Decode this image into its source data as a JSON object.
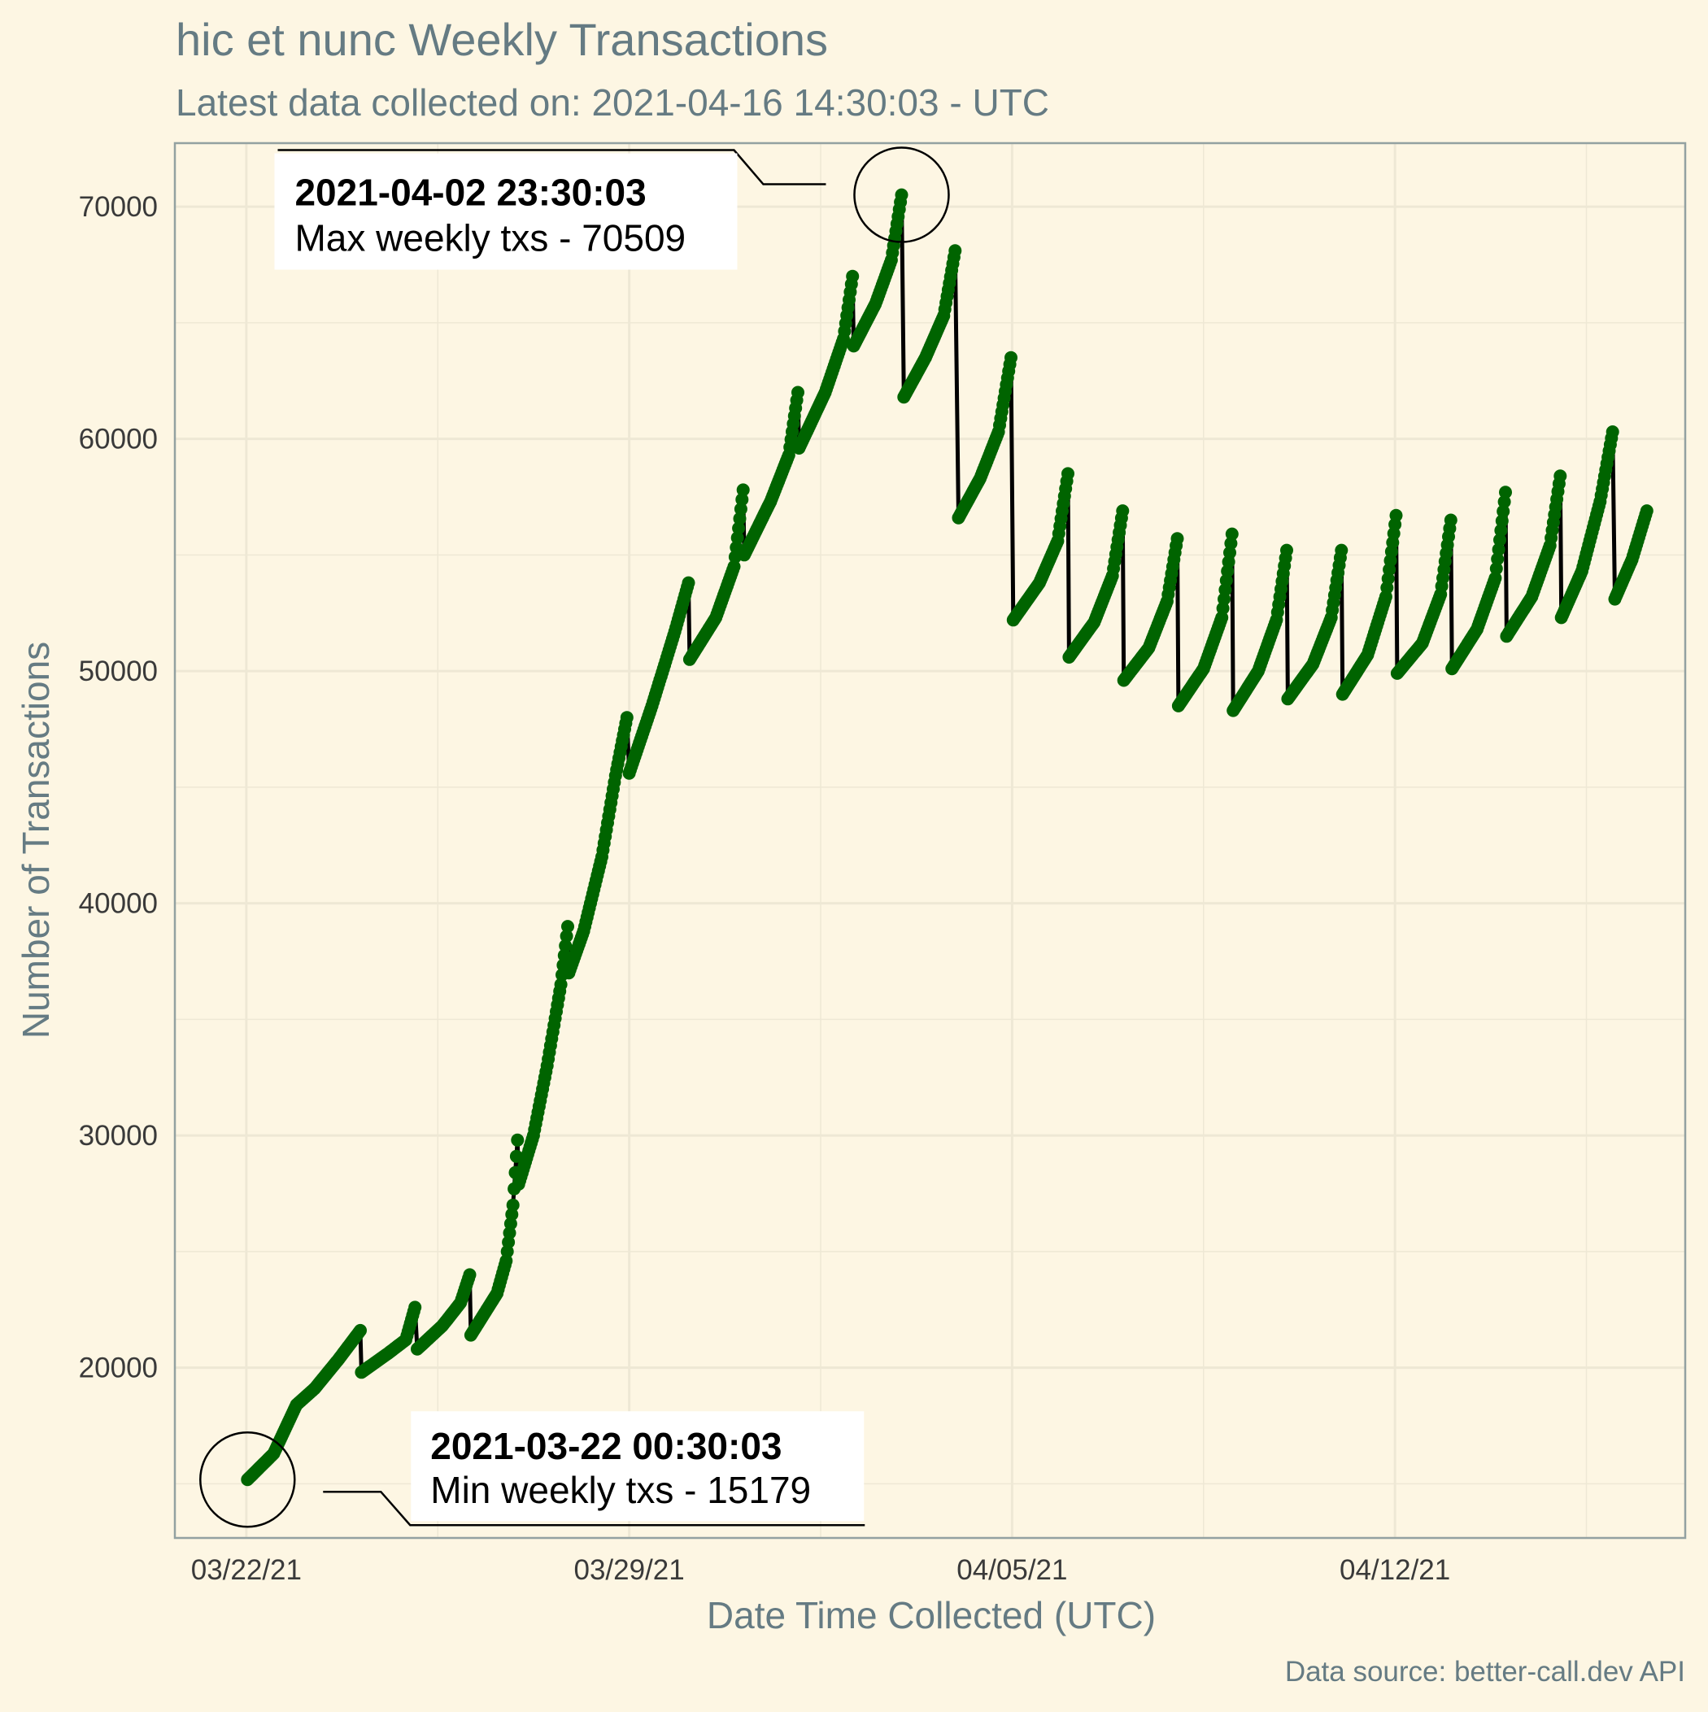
{
  "colors": {
    "background": "#fdf6e3",
    "panel_border": "#93a1a1",
    "grid": "#eee8d5",
    "line": "#000000",
    "points": "#006400",
    "text_muted": "#657b83",
    "annotation_box": "#ffffff"
  },
  "chart_data": {
    "type": "line",
    "title": "hic et nunc Weekly Transactions",
    "subtitle": "Latest data collected on: 2021-04-16 14:30:03  - UTC",
    "xlabel": "Date Time Collected (UTC)",
    "ylabel": "Number of Transactions",
    "caption": "Data source: better-call.dev API",
    "x_type": "datetime",
    "xlim": [
      "2021-03-20 17:00",
      "2021-04-17 07:00"
    ],
    "ylim": [
      12700,
      72700
    ],
    "x_ticks": [
      {
        "value": "2021-03-22 00:00",
        "label": "03/22/21"
      },
      {
        "value": "2021-03-29 00:00",
        "label": "03/29/21"
      },
      {
        "value": "2021-04-05 00:00",
        "label": "04/05/21"
      },
      {
        "value": "2021-04-12 00:00",
        "label": "04/12/21"
      }
    ],
    "y_ticks": [
      20000,
      30000,
      40000,
      50000,
      60000,
      70000
    ],
    "grid": true,
    "legend": "none",
    "series": [
      {
        "segments": [
          [
            [
              "2021-03-22 00:30",
              15179
            ],
            [
              "2021-03-22 12:00",
              16300
            ],
            [
              "2021-03-22 22:00",
              18400
            ],
            [
              "2021-03-23 06:00",
              19100
            ],
            [
              "2021-03-23 16:00",
              20300
            ],
            [
              "2021-03-24 02:00",
              21600
            ]
          ],
          [
            [
              "2021-03-24 02:30",
              19800
            ],
            [
              "2021-03-24 14:00",
              20600
            ],
            [
              "2021-03-24 22:00",
              21200
            ],
            [
              "2021-03-25 02:00",
              22600
            ]
          ],
          [
            [
              "2021-03-25 03:00",
              20800
            ],
            [
              "2021-03-25 14:00",
              21800
            ],
            [
              "2021-03-25 22:00",
              22800
            ],
            [
              "2021-03-26 02:00",
              24000
            ]
          ],
          [
            [
              "2021-03-26 02:30",
              21400
            ],
            [
              "2021-03-26 14:00",
              23200
            ],
            [
              "2021-03-26 18:00",
              24600
            ],
            [
              "2021-03-26 21:00",
              27000
            ],
            [
              "2021-03-26 23:00",
              29800
            ]
          ],
          [
            [
              "2021-03-26 23:30",
              27900
            ],
            [
              "2021-03-27 06:00",
              30000
            ],
            [
              "2021-03-27 12:00",
              33000
            ],
            [
              "2021-03-27 18:00",
              36500
            ],
            [
              "2021-03-27 21:00",
              39000
            ]
          ],
          [
            [
              "2021-03-27 21:30",
              37000
            ],
            [
              "2021-03-28 04:00",
              38800
            ],
            [
              "2021-03-28 12:00",
              42000
            ],
            [
              "2021-03-28 18:00",
              45500
            ],
            [
              "2021-03-28 23:00",
              48000
            ]
          ],
          [
            [
              "2021-03-29 00:00",
              45600
            ],
            [
              "2021-03-29 10:00",
              48500
            ],
            [
              "2021-03-29 20:00",
              51700
            ],
            [
              "2021-03-30 02:00",
              53800
            ]
          ],
          [
            [
              "2021-03-30 02:30",
              50500
            ],
            [
              "2021-03-30 14:00",
              52300
            ],
            [
              "2021-03-30 22:00",
              54500
            ],
            [
              "2021-03-31 02:00",
              57800
            ]
          ],
          [
            [
              "2021-03-31 02:30",
              55000
            ],
            [
              "2021-03-31 14:00",
              57300
            ],
            [
              "2021-03-31 22:00",
              59300
            ],
            [
              "2021-04-01 02:00",
              62000
            ]
          ],
          [
            [
              "2021-04-01 02:30",
              59600
            ],
            [
              "2021-04-01 14:00",
              62000
            ],
            [
              "2021-04-01 22:00",
              64300
            ],
            [
              "2021-04-02 02:00",
              67000
            ]
          ],
          [
            [
              "2021-04-02 02:30",
              64000
            ],
            [
              "2021-04-02 12:00",
              65800
            ],
            [
              "2021-04-02 19:00",
              67700
            ],
            [
              "2021-04-02 23:30",
              70509
            ]
          ],
          [
            [
              "2021-04-03 00:30",
              61800
            ],
            [
              "2021-04-03 10:00",
              63500
            ],
            [
              "2021-04-03 18:00",
              65300
            ],
            [
              "2021-04-03 23:00",
              68100
            ]
          ],
          [
            [
              "2021-04-04 00:30",
              56600
            ],
            [
              "2021-04-04 10:00",
              58300
            ],
            [
              "2021-04-04 18:00",
              60300
            ],
            [
              "2021-04-04 23:30",
              63500
            ]
          ],
          [
            [
              "2021-04-05 00:30",
              52200
            ],
            [
              "2021-04-05 12:00",
              53800
            ],
            [
              "2021-04-05 20:00",
              55600
            ],
            [
              "2021-04-06 00:30",
              58500
            ]
          ],
          [
            [
              "2021-04-06 01:00",
              50600
            ],
            [
              "2021-04-06 12:00",
              52100
            ],
            [
              "2021-04-06 20:00",
              54100
            ],
            [
              "2021-04-07 00:30",
              56900
            ]
          ],
          [
            [
              "2021-04-07 01:00",
              49600
            ],
            [
              "2021-04-07 12:00",
              51000
            ],
            [
              "2021-04-07 20:00",
              53000
            ],
            [
              "2021-04-08 00:30",
              55700
            ]
          ],
          [
            [
              "2021-04-08 01:00",
              48500
            ],
            [
              "2021-04-08 12:00",
              50100
            ],
            [
              "2021-04-08 20:00",
              52300
            ],
            [
              "2021-04-09 00:30",
              55900
            ]
          ],
          [
            [
              "2021-04-09 01:00",
              48300
            ],
            [
              "2021-04-09 12:00",
              50000
            ],
            [
              "2021-04-09 20:00",
              52200
            ],
            [
              "2021-04-10 00:30",
              55200
            ]
          ],
          [
            [
              "2021-04-10 01:00",
              48800
            ],
            [
              "2021-04-10 12:00",
              50300
            ],
            [
              "2021-04-10 20:00",
              52300
            ],
            [
              "2021-04-11 00:30",
              55200
            ]
          ],
          [
            [
              "2021-04-11 01:00",
              49000
            ],
            [
              "2021-04-11 12:00",
              50700
            ],
            [
              "2021-04-11 20:00",
              53200
            ],
            [
              "2021-04-12 00:30",
              56700
            ]
          ],
          [
            [
              "2021-04-12 01:00",
              49900
            ],
            [
              "2021-04-12 12:00",
              51200
            ],
            [
              "2021-04-12 20:00",
              53300
            ],
            [
              "2021-04-13 00:30",
              56500
            ]
          ],
          [
            [
              "2021-04-13 01:00",
              50100
            ],
            [
              "2021-04-13 12:00",
              51800
            ],
            [
              "2021-04-13 20:00",
              54000
            ],
            [
              "2021-04-14 00:30",
              57700
            ]
          ],
          [
            [
              "2021-04-14 01:00",
              51500
            ],
            [
              "2021-04-14 12:00",
              53200
            ],
            [
              "2021-04-14 20:00",
              55400
            ],
            [
              "2021-04-15 00:30",
              58400
            ]
          ],
          [
            [
              "2021-04-15 01:00",
              52300
            ],
            [
              "2021-04-15 10:00",
              54300
            ],
            [
              "2021-04-15 18:00",
              57300
            ],
            [
              "2021-04-15 23:30",
              60300
            ]
          ],
          [
            [
              "2021-04-16 00:30",
              53100
            ],
            [
              "2021-04-16 08:00",
              54800
            ],
            [
              "2021-04-16 14:30",
              56900
            ]
          ]
        ]
      }
    ],
    "annotations": [
      {
        "kind": "max",
        "bold": "2021-04-02 23:30:03",
        "text": "Max weekly txs - 70509",
        "x": "2021-04-02 23:30",
        "y": 70509
      },
      {
        "kind": "min",
        "bold": "2021-03-22 00:30:03",
        "text": "Min weekly txs - 15179",
        "x": "2021-03-22 00:30",
        "y": 15179
      }
    ]
  }
}
